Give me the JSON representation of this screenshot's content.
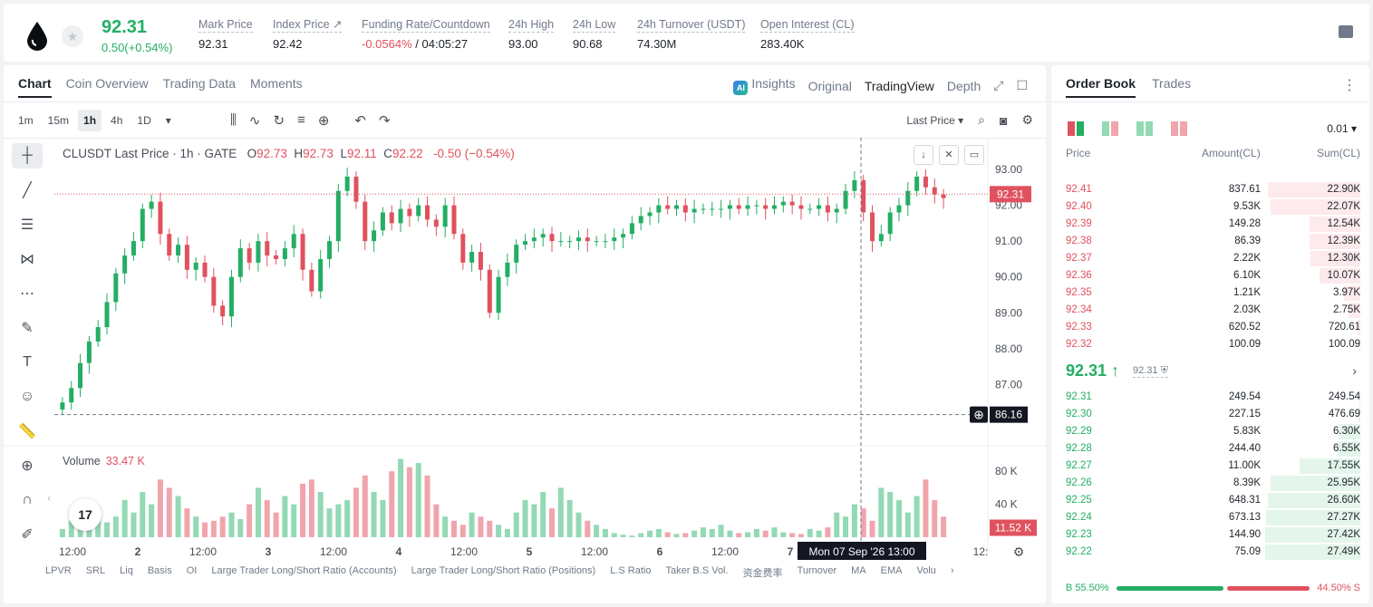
{
  "ticker": {
    "last_price": "92.31",
    "change": "0.50(+0.54%)",
    "stats": [
      {
        "label": "Mark Price",
        "value": "92.31"
      },
      {
        "label": "Index Price ↗",
        "value": "92.42"
      },
      {
        "label": "Funding Rate/Countdown",
        "value_red": "-0.0564%",
        "value": " / 04:05:27"
      },
      {
        "label": "24h High",
        "value": "93.00"
      },
      {
        "label": "24h Low",
        "value": "90.68"
      },
      {
        "label": "24h Turnover (USDT)",
        "value": "74.30M"
      },
      {
        "label": "Open Interest (CL)",
        "value": "283.40K"
      }
    ]
  },
  "chart_tabs": [
    "Chart",
    "Coin Overview",
    "Trading Data",
    "Moments"
  ],
  "chart_views": {
    "insights": "Insights",
    "original": "Original",
    "tradingview": "TradingView",
    "depth": "Depth",
    "ai_badge": "AI"
  },
  "intervals": [
    "1m",
    "15m",
    "1h",
    "4h",
    "1D"
  ],
  "last_price_label": "Last Price",
  "legend": {
    "symbol": "CLUSDT Last Price · 1h · GATE",
    "o": "92.73",
    "h": "92.73",
    "l": "92.11",
    "c": "92.22",
    "change": "-0.50 (−0.54%)"
  },
  "volume_legend": {
    "label": "Volume",
    "value": "33.47 K"
  },
  "tv_logo": "17",
  "indicators": [
    "LPVR",
    "SRL",
    "Liq",
    "Basis",
    "OI",
    "Large Trader Long/Short Ratio (Accounts)",
    "Large Trader Long/Short Ratio (Positions)",
    "L.S Ratio",
    "Taker B.S Vol.",
    "资金费率",
    "Turnover",
    "MA",
    "EMA",
    "Volu"
  ],
  "chart_data": {
    "type": "candlestick",
    "title": "CLUSDT Last Price · 1h · GATE",
    "price_ticks": [
      "93.00",
      "92.00",
      "91.00",
      "90.00",
      "89.00",
      "88.00",
      "87.00"
    ],
    "price_axis_range": [
      86.0,
      93.0
    ],
    "volume_ticks": [
      "80 K",
      "40 K"
    ],
    "x_ticks": [
      "12:00",
      "2",
      "12:00",
      "3",
      "12:00",
      "4",
      "12:00",
      "5",
      "12:00",
      "6",
      "12:00",
      "7",
      "12:"
    ],
    "current_price_label": "92.31",
    "crosshair_price_label": "86.16",
    "crosshair_time_label": "Mon 07 Sep '26   13:00",
    "volume_last_label": "11.52 K",
    "ohlc_path": [
      86.5,
      86.9,
      87.6,
      88.2,
      88.6,
      89.3,
      90.1,
      90.6,
      91.0,
      91.9,
      92.1,
      91.2,
      90.6,
      90.9,
      90.2,
      90.4,
      90.0,
      89.2,
      88.9,
      90.0,
      90.8,
      90.4,
      91.0,
      90.6,
      90.5,
      90.8,
      91.2,
      90.2,
      89.6,
      90.5,
      91.0,
      92.4,
      92.8,
      92.1,
      91.0,
      91.3,
      91.8,
      91.5,
      91.9,
      91.7,
      92.0,
      91.6,
      91.4,
      92.0,
      91.2,
      90.4,
      90.7,
      90.2,
      89.0,
      90.0,
      90.4,
      90.9,
      91.0,
      91.1,
      91.2,
      91.0,
      91.0,
      91.0,
      91.1,
      91.0,
      91.0,
      91.0,
      91.1,
      91.2,
      91.5,
      91.7,
      91.8,
      92.0,
      91.9,
      92.0,
      91.8,
      91.9,
      91.9,
      91.9,
      91.9,
      92.0,
      91.9,
      92.0,
      92.0,
      91.9,
      92.0,
      92.1,
      92.0,
      91.9,
      91.9,
      92.0,
      91.8,
      91.9,
      92.4,
      92.7,
      91.8,
      91.0,
      91.2,
      91.8,
      92.0,
      92.4,
      92.8,
      92.5,
      92.3,
      92.2
    ],
    "volume_thousands": [
      10,
      20,
      15,
      30,
      35,
      18,
      25,
      45,
      30,
      55,
      40,
      70,
      60,
      50,
      35,
      25,
      18,
      20,
      25,
      30,
      22,
      40,
      60,
      45,
      30,
      50,
      40,
      65,
      70,
      55,
      35,
      40,
      45,
      60,
      75,
      55,
      45,
      80,
      95,
      85,
      90,
      75,
      40,
      25,
      20,
      15,
      30,
      25,
      20,
      15,
      10,
      30,
      45,
      40,
      55,
      35,
      60,
      45,
      30,
      20,
      15,
      10,
      5,
      3,
      2,
      5,
      8,
      10,
      6,
      4,
      5,
      8,
      12,
      10,
      15,
      8,
      5,
      6,
      10,
      8,
      12,
      6,
      5,
      4,
      10,
      8,
      12,
      30,
      25,
      40,
      35,
      20,
      60,
      55,
      45,
      30,
      50,
      70,
      45,
      25
    ]
  },
  "order_book": {
    "tabs": [
      "Order Book",
      "Trades"
    ],
    "step": "0.01 ▾",
    "headers": {
      "price": "Price",
      "amount": "Amount(CL)",
      "sum": "Sum(CL)"
    },
    "asks": [
      {
        "price": "92.41",
        "amount": "837.61",
        "sum": "22.90K",
        "depth": 0.97
      },
      {
        "price": "92.40",
        "amount": "9.53K",
        "sum": "22.07K",
        "depth": 0.94
      },
      {
        "price": "92.39",
        "amount": "149.28",
        "sum": "12.54K",
        "depth": 0.53
      },
      {
        "price": "92.38",
        "amount": "86.39",
        "sum": "12.39K",
        "depth": 0.53
      },
      {
        "price": "92.37",
        "amount": "2.22K",
        "sum": "12.30K",
        "depth": 0.52
      },
      {
        "price": "92.36",
        "amount": "6.10K",
        "sum": "10.07K",
        "depth": 0.43
      },
      {
        "price": "92.35",
        "amount": "1.21K",
        "sum": "3.97K",
        "depth": 0.17
      },
      {
        "price": "92.34",
        "amount": "2.03K",
        "sum": "2.75K",
        "depth": 0.12
      },
      {
        "price": "92.33",
        "amount": "620.52",
        "sum": "720.61",
        "depth": 0.03
      },
      {
        "price": "92.32",
        "amount": "100.09",
        "sum": "100.09",
        "depth": 0.01
      }
    ],
    "mid_price": "92.31 ↑",
    "mark_price": "92.31",
    "bids": [
      {
        "price": "92.31",
        "amount": "249.54",
        "sum": "249.54",
        "depth": 0.01
      },
      {
        "price": "92.30",
        "amount": "227.15",
        "sum": "476.69",
        "depth": 0.02
      },
      {
        "price": "92.29",
        "amount": "5.83K",
        "sum": "6.30K",
        "depth": 0.23
      },
      {
        "price": "92.28",
        "amount": "244.40",
        "sum": "6.55K",
        "depth": 0.24
      },
      {
        "price": "92.27",
        "amount": "11.00K",
        "sum": "17.55K",
        "depth": 0.64
      },
      {
        "price": "92.26",
        "amount": "8.39K",
        "sum": "25.95K",
        "depth": 0.94
      },
      {
        "price": "92.25",
        "amount": "648.31",
        "sum": "26.60K",
        "depth": 0.97
      },
      {
        "price": "92.24",
        "amount": "673.13",
        "sum": "27.27K",
        "depth": 0.99
      },
      {
        "price": "92.23",
        "amount": "144.90",
        "sum": "27.42K",
        "depth": 1.0
      },
      {
        "price": "92.22",
        "amount": "75.09",
        "sum": "27.49K",
        "depth": 1.0
      }
    ],
    "buy_ratio": "B 55.50%",
    "sell_ratio": "44.50% S",
    "buy_fraction": 0.555
  },
  "colors": {
    "up": "#24ae64",
    "down": "#e0525e",
    "up_vol": "#92d9b4",
    "down_vol": "#f0a5ad"
  }
}
